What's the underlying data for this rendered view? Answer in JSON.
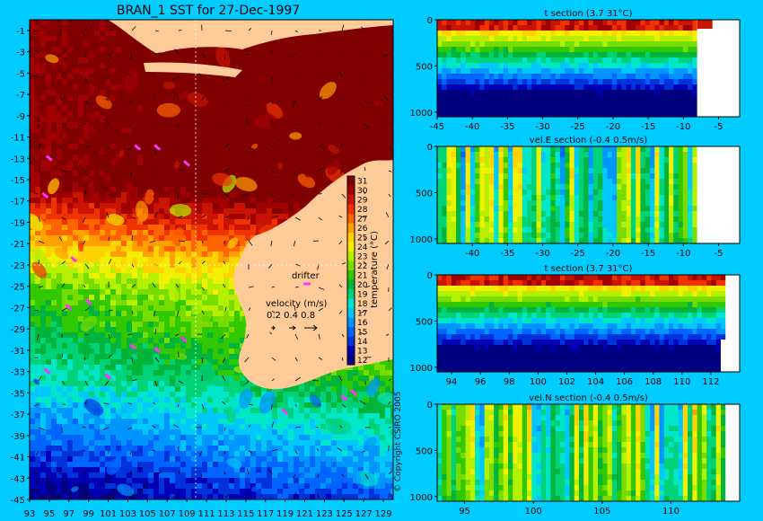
{
  "colors": {
    "background": "#00ccff",
    "land": "#ffcc99",
    "drifter": "#ff33ff",
    "grid": "#ffffff"
  },
  "colormap": [
    "#000080",
    "#0000b4",
    "#0032dc",
    "#0064ff",
    "#0096ff",
    "#00c8ff",
    "#00e6c8",
    "#00d278",
    "#00b43c",
    "#32c800",
    "#78dc00",
    "#b4f000",
    "#f0f000",
    "#ffd200",
    "#ffa000",
    "#ff6400",
    "#f03200",
    "#c81400",
    "#a00000",
    "#800000"
  ],
  "map_chart": {
    "type": "heatmap",
    "title": "BRAN_1 SST for 27-Dec-1997",
    "x_ticks": [
      "93",
      "95",
      "97",
      "99",
      "101",
      "103",
      "105",
      "107",
      "109",
      "111",
      "113",
      "115",
      "117",
      "119",
      "121",
      "123",
      "125",
      "127",
      "129"
    ],
    "y_ticks": [
      "-1",
      "-3",
      "-5",
      "-7",
      "-9",
      "-11",
      "-13",
      "-15",
      "-17",
      "-19",
      "-21",
      "-23",
      "-25",
      "-27",
      "-29",
      "-31",
      "-33",
      "-35",
      "-37",
      "-39",
      "-41",
      "-43",
      "-45"
    ],
    "xlim": [
      93,
      130
    ],
    "ylim": [
      -45,
      0
    ],
    "colorbar": {
      "label": "temperature (°C)",
      "ticks": [
        "31",
        "30",
        "29",
        "28",
        "27",
        "26",
        "25",
        "24",
        "23",
        "22",
        "21",
        "20",
        "19",
        "18",
        "17",
        "16",
        "15",
        "14",
        "13",
        "12"
      ],
      "range": [
        12,
        31
      ]
    },
    "legend": {
      "drifter_label": "drifter",
      "velocity_label": "velocity (m/s)",
      "velocity_scale": "0.2 0.4 0.8"
    },
    "copyright": "© Copyright CSIRO 2005"
  },
  "section_charts": [
    {
      "type": "heatmap",
      "title": "t section (3.7      31°C)",
      "x_ticks": [
        "-45",
        "-40",
        "-35",
        "-30",
        "-25",
        "-20",
        "-15",
        "-10",
        "-5"
      ],
      "y_ticks": [
        "0",
        "500",
        "1000"
      ],
      "xlim": [
        -45,
        -2
      ],
      "ylim": [
        1050,
        0
      ],
      "variant": "temp_lat"
    },
    {
      "type": "heatmap",
      "title": "vel.E section (-0.4      0.5m/s)",
      "x_ticks": [
        "-40",
        "-35",
        "-30",
        "-25",
        "-20",
        "-15",
        "-10",
        "-5"
      ],
      "y_ticks": [
        "0",
        "500",
        "1000"
      ],
      "xlim": [
        -45,
        -2
      ],
      "ylim": [
        1050,
        0
      ],
      "variant": "vel_lat"
    },
    {
      "type": "heatmap",
      "title": "t section (3.7      31°C)",
      "x_ticks": [
        "94",
        "96",
        "98",
        "100",
        "102",
        "104",
        "106",
        "108",
        "110",
        "112"
      ],
      "y_ticks": [
        "0",
        "500",
        "1000"
      ],
      "xlim": [
        93,
        114
      ],
      "ylim": [
        1050,
        0
      ],
      "variant": "temp_lon"
    },
    {
      "type": "heatmap",
      "title": "vel.N section (-0.4      0.5m/s)",
      "x_ticks": [
        "95",
        "100",
        "105",
        "110"
      ],
      "y_ticks": [
        "0",
        "500",
        "1000"
      ],
      "xlim": [
        93,
        115
      ],
      "ylim": [
        1050,
        0
      ],
      "variant": "vel_lon"
    }
  ]
}
